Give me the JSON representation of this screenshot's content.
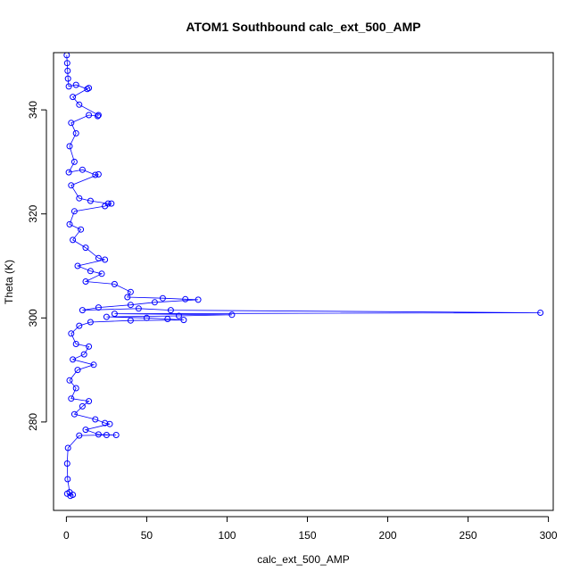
{
  "chart_data": {
    "type": "scatter",
    "style": "points-and-lines",
    "title": "ATOM1 Southbound calc_ext_500_AMP",
    "xlabel": "calc_ext_500_AMP",
    "ylabel": "Theta (K)",
    "xlim": [
      -8,
      303
    ],
    "ylim": [
      263,
      351
    ],
    "x_ticks": [
      0,
      50,
      100,
      150,
      200,
      250,
      300
    ],
    "y_ticks": [
      280,
      300,
      320,
      340
    ],
    "x_tick_labels": [
      "0",
      "50",
      "100",
      "150",
      "200",
      "250",
      "300"
    ],
    "y_tick_labels": [
      "280",
      "300",
      "320",
      "340"
    ],
    "grid": false,
    "legend": "none",
    "color": "#0000ff",
    "series": [
      {
        "points": [
          [
            0.2,
            350.5
          ],
          [
            0.5,
            349.0
          ],
          [
            0.8,
            347.5
          ],
          [
            1.0,
            346.0
          ],
          [
            1.5,
            344.5
          ],
          [
            6.0,
            344.8
          ],
          [
            13.0,
            344.0
          ],
          [
            14.0,
            344.2
          ],
          [
            4.0,
            342.5
          ],
          [
            8.0,
            341.0
          ],
          [
            20.0,
            339.0
          ],
          [
            19.5,
            338.8
          ],
          [
            14.0,
            339.0
          ],
          [
            3.0,
            337.5
          ],
          [
            6.0,
            335.5
          ],
          [
            2.0,
            333.0
          ],
          [
            5.0,
            330.0
          ],
          [
            1.5,
            328.0
          ],
          [
            10.0,
            328.5
          ],
          [
            18.0,
            327.5
          ],
          [
            20.0,
            327.6
          ],
          [
            3.0,
            325.5
          ],
          [
            8.0,
            323.0
          ],
          [
            15.0,
            322.5
          ],
          [
            26.0,
            322.0
          ],
          [
            28.0,
            322.0
          ],
          [
            24.0,
            321.5
          ],
          [
            5.0,
            320.5
          ],
          [
            2.0,
            318.0
          ],
          [
            9.0,
            317.0
          ],
          [
            4.0,
            315.0
          ],
          [
            12.0,
            313.5
          ],
          [
            20.0,
            311.5
          ],
          [
            24.0,
            311.2
          ],
          [
            7.0,
            310.0
          ],
          [
            15.0,
            309.0
          ],
          [
            22.0,
            308.5
          ],
          [
            12.0,
            307.0
          ],
          [
            30.0,
            306.5
          ],
          [
            40.0,
            305.0
          ],
          [
            38.0,
            304.0
          ],
          [
            60.0,
            303.8
          ],
          [
            74.0,
            303.6
          ],
          [
            82.0,
            303.5
          ],
          [
            55.0,
            303.0
          ],
          [
            40.0,
            302.5
          ],
          [
            20.0,
            302.0
          ],
          [
            10.0,
            301.5
          ],
          [
            45.0,
            301.8
          ],
          [
            65.0,
            301.5
          ],
          [
            295.0,
            301.0
          ],
          [
            30.0,
            300.8
          ],
          [
            103.0,
            300.6
          ],
          [
            70.0,
            300.4
          ],
          [
            25.0,
            300.2
          ],
          [
            50.0,
            300.0
          ],
          [
            63.0,
            299.8
          ],
          [
            73.0,
            299.6
          ],
          [
            40.0,
            299.5
          ],
          [
            15.0,
            299.2
          ],
          [
            8.0,
            298.5
          ],
          [
            3.0,
            297.0
          ],
          [
            6.0,
            295.0
          ],
          [
            14.0,
            294.5
          ],
          [
            11.0,
            293.0
          ],
          [
            4.0,
            292.0
          ],
          [
            17.0,
            291.0
          ],
          [
            7.0,
            290.0
          ],
          [
            2.0,
            288.0
          ],
          [
            6.0,
            286.5
          ],
          [
            3.0,
            284.5
          ],
          [
            14.0,
            284.0
          ],
          [
            10.0,
            283.0
          ],
          [
            5.0,
            281.5
          ],
          [
            18.0,
            280.5
          ],
          [
            24.0,
            279.8
          ],
          [
            27.0,
            279.6
          ],
          [
            12.0,
            278.5
          ],
          [
            20.0,
            277.6
          ],
          [
            31.0,
            277.5
          ],
          [
            25.0,
            277.5
          ],
          [
            8.0,
            277.4
          ],
          [
            1.0,
            275.0
          ],
          [
            0.5,
            272.0
          ],
          [
            0.8,
            269.0
          ],
          [
            2.0,
            266.5
          ],
          [
            4.0,
            266.0
          ],
          [
            2.5,
            265.8
          ],
          [
            0.5,
            266.2
          ]
        ]
      }
    ]
  }
}
